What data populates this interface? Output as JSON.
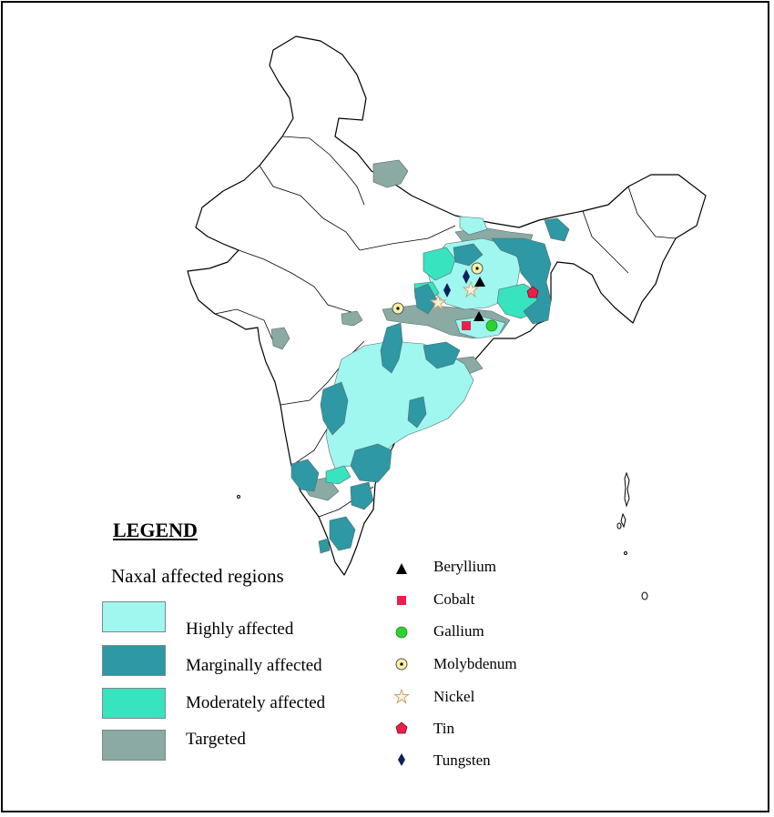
{
  "legend": {
    "title": "LEGEND",
    "subtitle": "Naxal affected regions",
    "regions": [
      {
        "label": "Highly affected",
        "color": "#9ff7f0"
      },
      {
        "label": "Marginally affected",
        "color": "#2e98a5"
      },
      {
        "label": "Moderately affected",
        "color": "#38e3bf"
      },
      {
        "label": "Targeted",
        "color": "#8aaaa3"
      }
    ],
    "minerals": [
      {
        "label": "Beryllium",
        "icon": "triangle-icon",
        "color": "#000000"
      },
      {
        "label": "Cobalt",
        "icon": "square-icon",
        "color": "#e8204a"
      },
      {
        "label": "Gallium",
        "icon": "circle-icon",
        "color": "#2fd12f"
      },
      {
        "label": "Molybdenum",
        "icon": "dotted-circle-icon",
        "color": "#f7f1a8"
      },
      {
        "label": "Nickel",
        "icon": "star-icon",
        "color": "#c9a56a"
      },
      {
        "label": "Tin",
        "icon": "pentagon-icon",
        "color": "#e8204a"
      },
      {
        "label": "Tungsten",
        "icon": "diamond-icon",
        "color": "#10205a"
      }
    ]
  }
}
